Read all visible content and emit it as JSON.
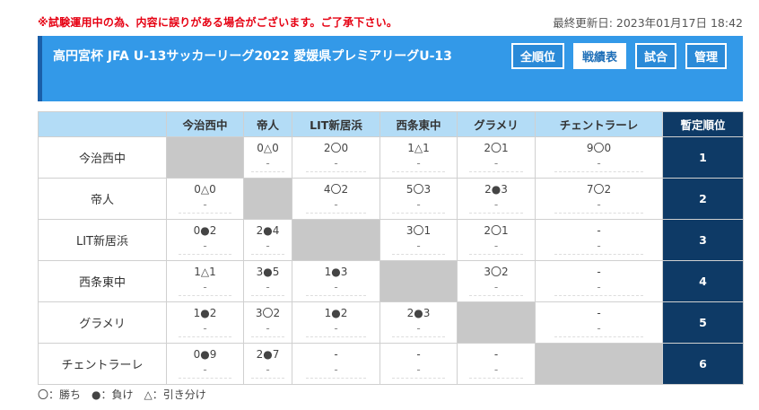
{
  "notice": "※試験運用中の為、内容に誤りがある場合がございます。ご了承下さい。",
  "last_updated": "最終更新日: 2023年01月17日 18:42",
  "title": "高円宮杯 JFA U-13サッカーリーグ2022 愛媛県プレミアリーグU-13",
  "nav": [
    "全順位",
    "戦績表",
    "試合",
    "管理"
  ],
  "table": {
    "columns": [
      "",
      "今治西中",
      "帝人",
      "LIT新居浜",
      "西条東中",
      "グラメリ",
      "チェントラーレ",
      "暫定順位"
    ],
    "rows": [
      {
        "team": "今治西中",
        "cells": [
          null,
          "0△0",
          "2〇0",
          "1△1",
          "2〇1",
          "9〇0"
        ],
        "subs": [
          null,
          "-",
          "-",
          "-",
          "-",
          "-"
        ],
        "rank": "1"
      },
      {
        "team": "帝人",
        "cells": [
          "0△0",
          null,
          "4〇2",
          "5〇3",
          "2●3",
          "7〇2"
        ],
        "subs": [
          "-",
          null,
          "-",
          "-",
          "-",
          "-"
        ],
        "rank": "2"
      },
      {
        "team": "LIT新居浜",
        "cells": [
          "0●2",
          "2●4",
          null,
          "3〇1",
          "2〇1",
          "-"
        ],
        "subs": [
          "-",
          "-",
          null,
          "-",
          "-",
          "-"
        ],
        "rank": "3"
      },
      {
        "team": "西条東中",
        "cells": [
          "1△1",
          "3●5",
          "1●3",
          null,
          "3〇2",
          "-"
        ],
        "subs": [
          "-",
          "-",
          "-",
          null,
          "-",
          "-"
        ],
        "rank": "4"
      },
      {
        "team": "グラメリ",
        "cells": [
          "1●2",
          "3〇2",
          "1●2",
          "2●3",
          null,
          "-"
        ],
        "subs": [
          "-",
          "-",
          "-",
          "-",
          null,
          "-"
        ],
        "rank": "5"
      },
      {
        "team": "チェントラーレ",
        "cells": [
          "0●9",
          "2●7",
          "-",
          "-",
          "-",
          null
        ],
        "subs": [
          "-",
          "-",
          "-",
          "-",
          "-",
          null
        ],
        "rank": "6"
      }
    ]
  },
  "legend": "〇：勝ち　●：負け　△：引き分け"
}
